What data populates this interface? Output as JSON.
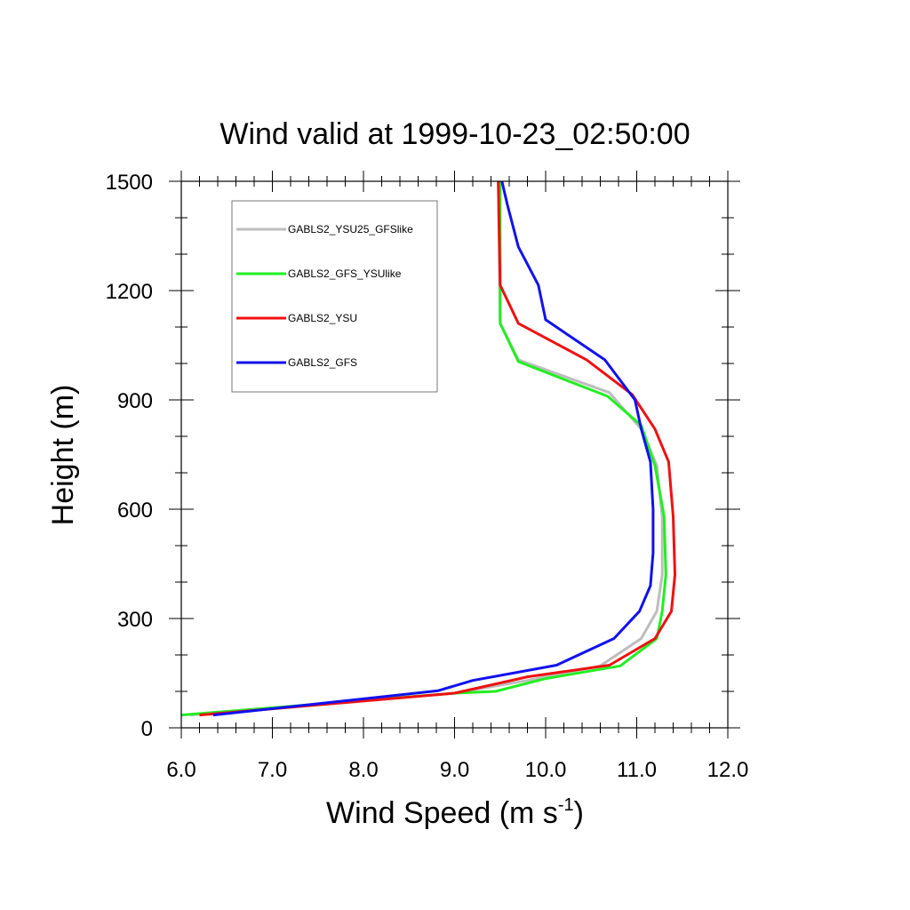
{
  "chart_data": {
    "type": "line",
    "title": "Wind valid at 1999-10-23_02:50:00",
    "xlabel": "Wind Speed (m s",
    "xlabel_sup": "-1",
    "xlabel_close": ")",
    "ylabel": "Height (m)",
    "xlim": [
      6.0,
      12.0
    ],
    "ylim": [
      0,
      1500
    ],
    "x_ticks": [
      "6.0",
      "7.0",
      "8.0",
      "9.0",
      "10.0",
      "11.0",
      "12.0"
    ],
    "y_ticks": [
      "0",
      "300",
      "600",
      "900",
      "1200",
      "1500"
    ],
    "legend_position": "top-left",
    "grid": false,
    "series": [
      {
        "name": "GABLS2_YSU25_GFSlike",
        "color": "#bdbdbd",
        "points": [
          [
            6.1,
            35
          ],
          [
            9.0,
            95
          ],
          [
            9.8,
            130
          ],
          [
            10.6,
            170
          ],
          [
            11.05,
            245
          ],
          [
            11.22,
            320
          ],
          [
            11.28,
            420
          ],
          [
            11.28,
            580
          ],
          [
            11.22,
            720
          ],
          [
            11.05,
            820
          ],
          [
            10.7,
            920
          ],
          [
            9.7,
            1010
          ],
          [
            9.5,
            1110
          ],
          [
            9.48,
            1500
          ]
        ]
      },
      {
        "name": "GABLS2_GFS_YSUlike",
        "color": "#22ee22",
        "points": [
          [
            6.0,
            35
          ],
          [
            9.0,
            95
          ],
          [
            9.45,
            100
          ],
          [
            10.0,
            135
          ],
          [
            10.82,
            170
          ],
          [
            11.22,
            245
          ],
          [
            11.28,
            320
          ],
          [
            11.32,
            420
          ],
          [
            11.3,
            580
          ],
          [
            11.2,
            720
          ],
          [
            11.05,
            830
          ],
          [
            10.68,
            910
          ],
          [
            9.7,
            1005
          ],
          [
            9.5,
            1110
          ],
          [
            9.5,
            1500
          ]
        ]
      },
      {
        "name": "GABLS2_YSU",
        "color": "#ee1111",
        "points": [
          [
            6.2,
            35
          ],
          [
            9.0,
            95
          ],
          [
            9.8,
            140
          ],
          [
            10.7,
            172
          ],
          [
            11.2,
            245
          ],
          [
            11.38,
            320
          ],
          [
            11.42,
            420
          ],
          [
            11.4,
            580
          ],
          [
            11.35,
            730
          ],
          [
            11.2,
            820
          ],
          [
            10.95,
            915
          ],
          [
            10.45,
            1010
          ],
          [
            9.7,
            1110
          ],
          [
            9.5,
            1215
          ],
          [
            9.48,
            1500
          ]
        ]
      },
      {
        "name": "GABLS2_GFS",
        "color": "#1111ee",
        "points": [
          [
            6.35,
            35
          ],
          [
            8.82,
            102
          ],
          [
            9.2,
            130
          ],
          [
            10.12,
            172
          ],
          [
            10.75,
            245
          ],
          [
            11.03,
            320
          ],
          [
            11.15,
            390
          ],
          [
            11.18,
            480
          ],
          [
            11.18,
            600
          ],
          [
            11.15,
            730
          ],
          [
            11.05,
            820
          ],
          [
            10.98,
            900
          ],
          [
            10.65,
            1010
          ],
          [
            10.0,
            1120
          ],
          [
            9.92,
            1215
          ],
          [
            9.7,
            1320
          ],
          [
            9.58,
            1435
          ],
          [
            9.52,
            1500
          ]
        ]
      }
    ]
  }
}
